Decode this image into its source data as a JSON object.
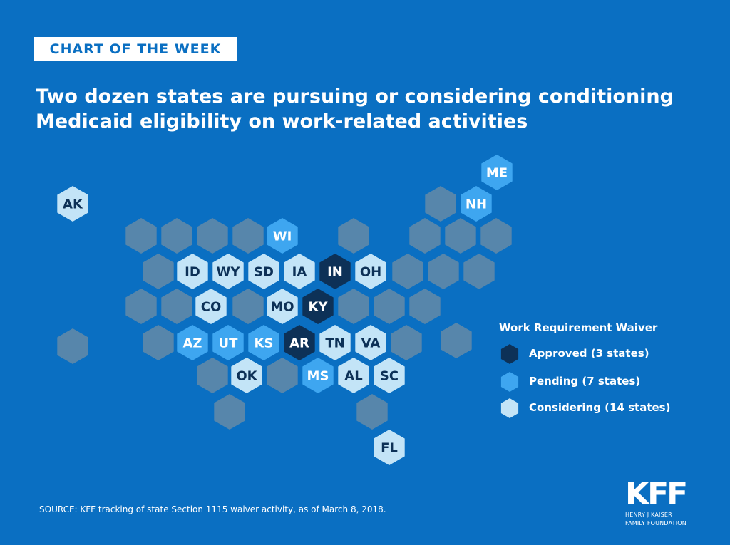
{
  "header": {
    "badge": "CHART OF THE WEEK",
    "title_line1": "Two dozen states are pursuing or considering conditioning",
    "title_line2": "Medicaid eligibility on work-related activities"
  },
  "colors": {
    "background": "#0a6fc2",
    "approved": "#0d3157",
    "pending": "#3ea6f0",
    "considering": "#c3e4f7",
    "none": "#5786ab",
    "dark_text": "#0d3157",
    "light_text": "#ffffff"
  },
  "legend": {
    "title": "Work Requirement Waiver",
    "items": [
      {
        "status": "approved",
        "label": "Approved (3 states)"
      },
      {
        "status": "pending",
        "label": "Pending (7 states)"
      },
      {
        "status": "considering",
        "label": "Considering (14 states)"
      }
    ]
  },
  "states": [
    {
      "label": "AK",
      "status": "considering"
    },
    {
      "label": "ME",
      "status": "pending"
    },
    {
      "label": "NH",
      "status": "pending"
    },
    {
      "label": "WI",
      "status": "pending"
    },
    {
      "label": "ID",
      "status": "considering"
    },
    {
      "label": "WY",
      "status": "considering"
    },
    {
      "label": "SD",
      "status": "considering"
    },
    {
      "label": "IA",
      "status": "considering"
    },
    {
      "label": "IN",
      "status": "approved"
    },
    {
      "label": "OH",
      "status": "considering"
    },
    {
      "label": "CO",
      "status": "considering"
    },
    {
      "label": "MO",
      "status": "considering"
    },
    {
      "label": "KY",
      "status": "approved"
    },
    {
      "label": "AZ",
      "status": "pending"
    },
    {
      "label": "UT",
      "status": "pending"
    },
    {
      "label": "KS",
      "status": "pending"
    },
    {
      "label": "AR",
      "status": "approved"
    },
    {
      "label": "TN",
      "status": "considering"
    },
    {
      "label": "VA",
      "status": "considering"
    },
    {
      "label": "OK",
      "status": "considering"
    },
    {
      "label": "MS",
      "status": "pending"
    },
    {
      "label": "AL",
      "status": "considering"
    },
    {
      "label": "SC",
      "status": "considering"
    },
    {
      "label": "FL",
      "status": "considering"
    }
  ],
  "source": "SOURCE: KFF tracking of state Section 1115 waiver activity, as of March 8, 2018.",
  "logo": {
    "mark": "KFF",
    "line1": "HENRY J KAISER",
    "line2": "FAMILY FOUNDATION"
  }
}
